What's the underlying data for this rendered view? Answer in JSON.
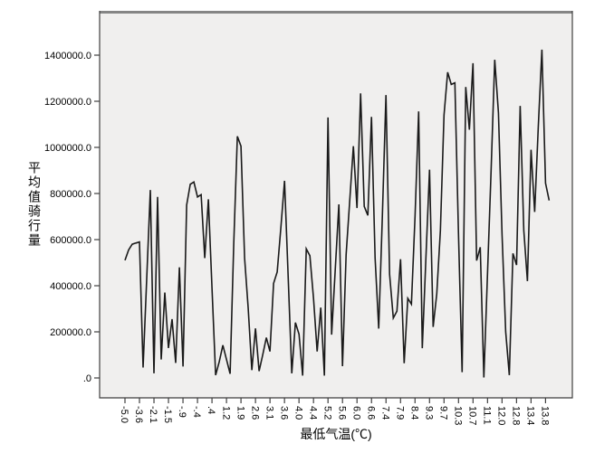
{
  "figure": {
    "background": "#ffffff"
  },
  "chart_data": {
    "type": "line",
    "title": "",
    "xlabel": "最低气温(℃)",
    "ylabel": "平均值骑行量",
    "legend": "none",
    "grid": "off",
    "x_tick_labels": [
      "-5.0",
      "-3.6",
      "-2.1",
      "-1.5",
      "-.9",
      "-.4",
      ".4",
      "1.2",
      "1.9",
      "2.6",
      "3.1",
      "3.6",
      "4.0",
      "4.4",
      "5.2",
      "5.6",
      "6.0",
      "6.6",
      "7.4",
      "7.9",
      "8.4",
      "9.3",
      "9.7",
      "10.3",
      "10.7",
      "11.1",
      "12.0",
      "12.8",
      "13.4",
      "13.8"
    ],
    "label_every": 4,
    "y_tick_labels": [
      ".0",
      "200000.0",
      "400000.0",
      "600000.0",
      "800000.0",
      "1000000.0",
      "1200000.0",
      "1400000.0"
    ],
    "y_tick_step": 200000,
    "ylim": [
      0,
      1400000
    ],
    "values": [
      510000,
      555000,
      580000,
      585000,
      590000,
      45000,
      430000,
      815000,
      20000,
      785000,
      80000,
      370000,
      130000,
      255000,
      65000,
      480000,
      50000,
      750000,
      840000,
      850000,
      785000,
      795000,
      520000,
      775000,
      390000,
      12000,
      70000,
      142000,
      80000,
      18000,
      580000,
      1048000,
      1005000,
      520000,
      300000,
      34000,
      215000,
      30000,
      100000,
      175000,
      115000,
      410000,
      460000,
      650000,
      855000,
      440000,
      20000,
      240000,
      190000,
      10000,
      560000,
      530000,
      345000,
      115000,
      305000,
      10000,
      1130000,
      188000,
      470000,
      753000,
      51000,
      535000,
      770000,
      1005000,
      737000,
      1234000,
      744000,
      705000,
      1132000,
      520000,
      214000,
      700000,
      1227000,
      450000,
      260000,
      290000,
      515000,
      64000,
      345000,
      320000,
      700000,
      1156000,
      129000,
      520000,
      903000,
      221000,
      365000,
      640000,
      1140000,
      1326000,
      1273000,
      1280000,
      620000,
      25000,
      1262000,
      1077000,
      1365000,
      509000,
      567000,
      2000,
      450000,
      900000,
      1380000,
      1150000,
      620000,
      200000,
      12000,
      540000,
      490000,
      1180000,
      640000,
      420000,
      990000,
      720000,
      1090000,
      1424000,
      845000,
      770000
    ],
    "line_color": "#1a1a1a",
    "plot_background": "#f0efee",
    "frame_color": "#3f3f3f",
    "top_border_color": "#858585",
    "tick_color": "#3f3f3f"
  }
}
